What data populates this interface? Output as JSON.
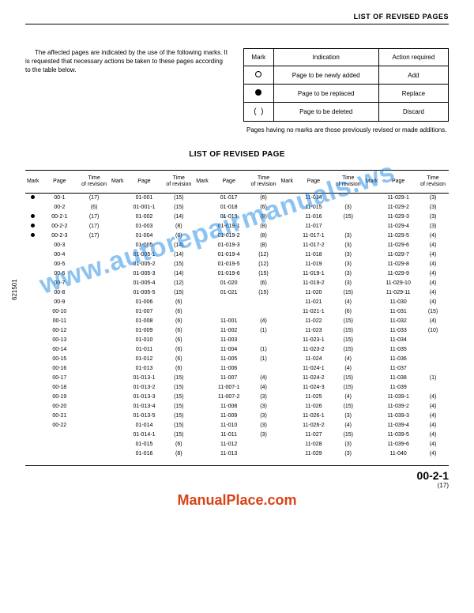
{
  "header": {
    "title": "LIST OF REVISED PAGES"
  },
  "intro": "The affected pages are indicated by the use of the following marks. It is requested that necessary actions be taken to these pages according to the table below.",
  "legend": {
    "headers": [
      "Mark",
      "Indication",
      "Action required"
    ],
    "rows": [
      {
        "mark": "open",
        "indication": "Page to be newly added",
        "action": "Add"
      },
      {
        "mark": "filled",
        "indication": "Page to be replaced",
        "action": "Replace"
      },
      {
        "mark": "paren",
        "indication": "Page to be deleted",
        "action": "Discard"
      }
    ]
  },
  "note": "Pages having no marks are those previously revised or made additions.",
  "section_title": "LIST OF REVISED PAGE",
  "side_label": "621501",
  "columns": [
    "Mark",
    "Page",
    "Time of revision"
  ],
  "rows": [
    [
      {
        "m": "●",
        "p": "00-1",
        "r": "(17)"
      },
      {
        "m": "",
        "p": "01-001",
        "r": "(15)"
      },
      {
        "m": "",
        "p": "01-017",
        "r": "(6)"
      },
      {
        "m": "",
        "p": "11-014",
        "r": ""
      },
      {
        "m": "",
        "p": "11-029-1",
        "r": "(3)"
      }
    ],
    [
      {
        "m": "",
        "p": "00-2",
        "r": "(6)"
      },
      {
        "m": "",
        "p": "01-001-1",
        "r": "(15)"
      },
      {
        "m": "",
        "p": "01-018",
        "r": "(6)"
      },
      {
        "m": "",
        "p": "11-015",
        "r": "(3)"
      },
      {
        "m": "",
        "p": "11-029-2",
        "r": "(3)"
      }
    ],
    [
      {
        "m": "●",
        "p": "00-2-1",
        "r": "(17)"
      },
      {
        "m": "",
        "p": "01-002",
        "r": "(14)"
      },
      {
        "m": "",
        "p": "01-019",
        "r": "(8)"
      },
      {
        "m": "",
        "p": "11-016",
        "r": "(15)"
      },
      {
        "m": "",
        "p": "11-029-3",
        "r": "(3)"
      }
    ],
    [
      {
        "m": "●",
        "p": "00-2-2",
        "r": "(17)"
      },
      {
        "m": "",
        "p": "01-003",
        "r": "(8)"
      },
      {
        "m": "",
        "p": "01-019-1",
        "r": "(8)"
      },
      {
        "m": "",
        "p": "11-017",
        "r": ""
      },
      {
        "m": "",
        "p": "11-029-4",
        "r": "(3)"
      }
    ],
    [
      {
        "m": "●",
        "p": "00-2-3",
        "r": "(17)"
      },
      {
        "m": "",
        "p": "01-004",
        "r": "(8)"
      },
      {
        "m": "",
        "p": "01-019-2",
        "r": "(8)"
      },
      {
        "m": "",
        "p": "11-017-1",
        "r": "(3)"
      },
      {
        "m": "",
        "p": "11-029-5",
        "r": "(4)"
      }
    ],
    [
      {
        "m": "",
        "p": "00-3",
        "r": ""
      },
      {
        "m": "",
        "p": "01-005",
        "r": "(14)"
      },
      {
        "m": "",
        "p": "01-019-3",
        "r": "(8)"
      },
      {
        "m": "",
        "p": "11-017-2",
        "r": "(3)"
      },
      {
        "m": "",
        "p": "11-029-6",
        "r": "(4)"
      }
    ],
    [
      {
        "m": "",
        "p": "00-4",
        "r": ""
      },
      {
        "m": "",
        "p": "01-005-1",
        "r": "(14)"
      },
      {
        "m": "",
        "p": "01-019-4",
        "r": "(12)"
      },
      {
        "m": "",
        "p": "11-018",
        "r": "(3)"
      },
      {
        "m": "",
        "p": "11-029-7",
        "r": "(4)"
      }
    ],
    [
      {
        "m": "",
        "p": "00-5",
        "r": ""
      },
      {
        "m": "",
        "p": "01-005-2",
        "r": "(15)"
      },
      {
        "m": "",
        "p": "01-019-5",
        "r": "(12)"
      },
      {
        "m": "",
        "p": "11-019",
        "r": "(3)"
      },
      {
        "m": "",
        "p": "11-029-8",
        "r": "(4)"
      }
    ],
    [
      {
        "m": "",
        "p": "00-6",
        "r": ""
      },
      {
        "m": "",
        "p": "01-005-3",
        "r": "(14)"
      },
      {
        "m": "",
        "p": "01-019-6",
        "r": "(15)"
      },
      {
        "m": "",
        "p": "11-019-1",
        "r": "(3)"
      },
      {
        "m": "",
        "p": "11-029-9",
        "r": "(4)"
      }
    ],
    [
      {
        "m": "",
        "p": "00-7",
        "r": ""
      },
      {
        "m": "",
        "p": "01-005-4",
        "r": "(12)"
      },
      {
        "m": "",
        "p": "01-020",
        "r": "(6)"
      },
      {
        "m": "",
        "p": "11-019-2",
        "r": "(3)"
      },
      {
        "m": "",
        "p": "11-029-10",
        "r": "(4)"
      }
    ],
    [
      {
        "m": "",
        "p": "00-8",
        "r": ""
      },
      {
        "m": "",
        "p": "01-005-5",
        "r": "(15)"
      },
      {
        "m": "",
        "p": "01-021",
        "r": "(15)"
      },
      {
        "m": "",
        "p": "11-020",
        "r": "(15)"
      },
      {
        "m": "",
        "p": "11-029-11",
        "r": "(4)"
      }
    ],
    [
      {
        "m": "",
        "p": "00-9",
        "r": ""
      },
      {
        "m": "",
        "p": "01-006",
        "r": "(6)"
      },
      {
        "m": "",
        "p": "",
        "r": ""
      },
      {
        "m": "",
        "p": "11-021",
        "r": "(4)"
      },
      {
        "m": "",
        "p": "11-030",
        "r": "(4)"
      }
    ],
    [
      {
        "m": "",
        "p": "00-10",
        "r": ""
      },
      {
        "m": "",
        "p": "01-007",
        "r": "(6)"
      },
      {
        "m": "",
        "p": "",
        "r": ""
      },
      {
        "m": "",
        "p": "11-021-1",
        "r": "(6)"
      },
      {
        "m": "",
        "p": "11-031",
        "r": "(15)"
      }
    ],
    [
      {
        "m": "",
        "p": "00-11",
        "r": ""
      },
      {
        "m": "",
        "p": "01-008",
        "r": "(6)"
      },
      {
        "m": "",
        "p": "11-001",
        "r": "(4)"
      },
      {
        "m": "",
        "p": "11-022",
        "r": "(15)"
      },
      {
        "m": "",
        "p": "11-032",
        "r": "(4)"
      }
    ],
    [
      {
        "m": "",
        "p": "00-12",
        "r": ""
      },
      {
        "m": "",
        "p": "01-009",
        "r": "(6)"
      },
      {
        "m": "",
        "p": "11-002",
        "r": "(1)"
      },
      {
        "m": "",
        "p": "11-023",
        "r": "(15)"
      },
      {
        "m": "",
        "p": "11-033",
        "r": "(10)"
      }
    ],
    [
      {
        "m": "",
        "p": "00-13",
        "r": ""
      },
      {
        "m": "",
        "p": "01-010",
        "r": "(6)"
      },
      {
        "m": "",
        "p": "11-003",
        "r": ""
      },
      {
        "m": "",
        "p": "11-023-1",
        "r": "(15)"
      },
      {
        "m": "",
        "p": "11-034",
        "r": ""
      }
    ],
    [
      {
        "m": "",
        "p": "00-14",
        "r": ""
      },
      {
        "m": "",
        "p": "01-011",
        "r": "(6)"
      },
      {
        "m": "",
        "p": "11-004",
        "r": "(1)"
      },
      {
        "m": "",
        "p": "11-023-2",
        "r": "(15)"
      },
      {
        "m": "",
        "p": "11-035",
        "r": ""
      }
    ],
    [
      {
        "m": "",
        "p": "00-15",
        "r": ""
      },
      {
        "m": "",
        "p": "01-012",
        "r": "(6)"
      },
      {
        "m": "",
        "p": "11-005",
        "r": "(1)"
      },
      {
        "m": "",
        "p": "11-024",
        "r": "(4)"
      },
      {
        "m": "",
        "p": "11-036",
        "r": ""
      }
    ],
    [
      {
        "m": "",
        "p": "00-16",
        "r": ""
      },
      {
        "m": "",
        "p": "01-013",
        "r": "(6)"
      },
      {
        "m": "",
        "p": "11-006",
        "r": ""
      },
      {
        "m": "",
        "p": "11-024-1",
        "r": "(4)"
      },
      {
        "m": "",
        "p": "11-037",
        "r": ""
      }
    ],
    [
      {
        "m": "",
        "p": "00-17",
        "r": ""
      },
      {
        "m": "",
        "p": "01-013-1",
        "r": "(15)"
      },
      {
        "m": "",
        "p": "11-007",
        "r": "(4)"
      },
      {
        "m": "",
        "p": "11-024-2",
        "r": "(15)"
      },
      {
        "m": "",
        "p": "11-038",
        "r": "(1)"
      }
    ],
    [
      {
        "m": "",
        "p": "00-18",
        "r": ""
      },
      {
        "m": "",
        "p": "01-013-2",
        "r": "(15)"
      },
      {
        "m": "",
        "p": "11-007-1",
        "r": "(4)"
      },
      {
        "m": "",
        "p": "11-024-3",
        "r": "(15)"
      },
      {
        "m": "",
        "p": "11-039",
        "r": ""
      }
    ],
    [
      {
        "m": "",
        "p": "00-19",
        "r": ""
      },
      {
        "m": "",
        "p": "01-013-3",
        "r": "(15)"
      },
      {
        "m": "",
        "p": "11-007-2",
        "r": "(3)"
      },
      {
        "m": "",
        "p": "11-025",
        "r": "(4)"
      },
      {
        "m": "",
        "p": "11-039-1",
        "r": "(4)"
      }
    ],
    [
      {
        "m": "",
        "p": "00-20",
        "r": ""
      },
      {
        "m": "",
        "p": "01-013-4",
        "r": "(15)"
      },
      {
        "m": "",
        "p": "11-008",
        "r": "(3)"
      },
      {
        "m": "",
        "p": "11-026",
        "r": "(15)"
      },
      {
        "m": "",
        "p": "11-039-2",
        "r": "(4)"
      }
    ],
    [
      {
        "m": "",
        "p": "00-21",
        "r": ""
      },
      {
        "m": "",
        "p": "01-013-5",
        "r": "(15)"
      },
      {
        "m": "",
        "p": "11-009",
        "r": "(3)"
      },
      {
        "m": "",
        "p": "11-026-1",
        "r": "(3)"
      },
      {
        "m": "",
        "p": "11-039-3",
        "r": "(4)"
      }
    ],
    [
      {
        "m": "",
        "p": "00-22",
        "r": ""
      },
      {
        "m": "",
        "p": "01-014",
        "r": "(15)"
      },
      {
        "m": "",
        "p": "11-010",
        "r": "(3)"
      },
      {
        "m": "",
        "p": "11-026-2",
        "r": "(4)"
      },
      {
        "m": "",
        "p": "11-039-4",
        "r": "(4)"
      }
    ],
    [
      {
        "m": "",
        "p": "",
        "r": ""
      },
      {
        "m": "",
        "p": "01-014-1",
        "r": "(15)"
      },
      {
        "m": "",
        "p": "11-011",
        "r": "(3)"
      },
      {
        "m": "",
        "p": "11-027",
        "r": "(15)"
      },
      {
        "m": "",
        "p": "11-039-5",
        "r": "(4)"
      }
    ],
    [
      {
        "m": "",
        "p": "",
        "r": ""
      },
      {
        "m": "",
        "p": "01-015",
        "r": "(6)"
      },
      {
        "m": "",
        "p": "11-012",
        "r": ""
      },
      {
        "m": "",
        "p": "11-028",
        "r": "(3)"
      },
      {
        "m": "",
        "p": "11-039-6",
        "r": "(4)"
      }
    ],
    [
      {
        "m": "",
        "p": "",
        "r": ""
      },
      {
        "m": "",
        "p": "01-016",
        "r": "(8)"
      },
      {
        "m": "",
        "p": "11-013",
        "r": ""
      },
      {
        "m": "",
        "p": "11-029",
        "r": "(3)"
      },
      {
        "m": "",
        "p": "11-040",
        "r": "(4)"
      }
    ]
  ],
  "footer": {
    "pagecode": "00-2-1",
    "subpage": "(17)",
    "brand": "ManualPlace.com"
  },
  "watermark": "www.autorepairmanuals.ws",
  "colors": {
    "text": "#000000",
    "background": "#ffffff",
    "brand": "#d84315",
    "watermark": "#1e88e5"
  }
}
